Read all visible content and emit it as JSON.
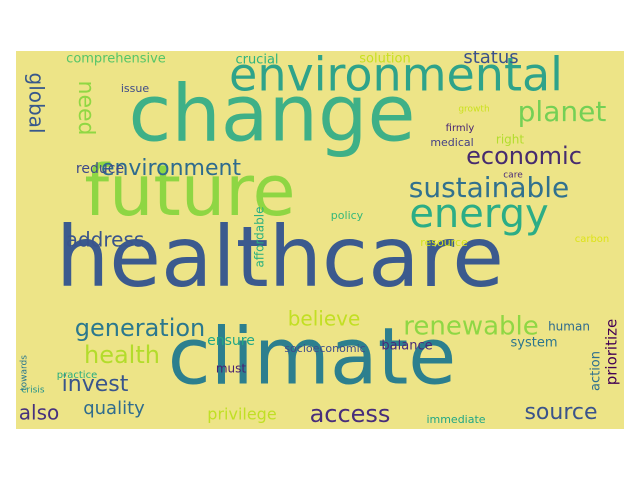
{
  "cloud": {
    "background": "#ede487",
    "words": [
      {
        "text": "healthcare",
        "color": "#3b5a8e"
      },
      {
        "text": "climate",
        "color": "#2c7f8e"
      },
      {
        "text": "change",
        "color": "#3eb087"
      },
      {
        "text": "future",
        "color": "#8ed643"
      },
      {
        "text": "environmental",
        "color": "#2ea38a"
      },
      {
        "text": "energy",
        "color": "#2cad86"
      },
      {
        "text": "sustainable",
        "color": "#31718e"
      },
      {
        "text": "economic",
        "color": "#462b6f"
      },
      {
        "text": "planet",
        "color": "#74d055"
      },
      {
        "text": "environment",
        "color": "#2e6b8e"
      },
      {
        "text": "generation",
        "color": "#2b788e"
      },
      {
        "text": "renewable",
        "color": "#8fd744"
      },
      {
        "text": "health",
        "color": "#b3dc2b"
      },
      {
        "text": "address",
        "color": "#3a548c"
      },
      {
        "text": "access",
        "color": "#472d7b"
      },
      {
        "text": "source",
        "color": "#3a538b"
      },
      {
        "text": "invest",
        "color": "#39558c"
      },
      {
        "text": "also",
        "color": "#46317e"
      },
      {
        "text": "quality",
        "color": "#2f6c8e"
      },
      {
        "text": "believe",
        "color": "#c2df23"
      },
      {
        "text": "need",
        "color": "#90d743"
      },
      {
        "text": "global",
        "color": "#38588c"
      },
      {
        "text": "status",
        "color": "#3b518b"
      },
      {
        "text": "reduce",
        "color": "#3e4989"
      },
      {
        "text": "comprehensive",
        "color": "#55c568"
      },
      {
        "text": "crucial",
        "color": "#2fb37f"
      },
      {
        "text": "solution",
        "color": "#c8e020"
      },
      {
        "text": "issue",
        "color": "#3e4a89"
      },
      {
        "text": "growth",
        "color": "#cbe11e"
      },
      {
        "text": "firmly",
        "color": "#482474"
      },
      {
        "text": "right",
        "color": "#b2dd2d"
      },
      {
        "text": "medical",
        "color": "#433e85"
      },
      {
        "text": "care",
        "color": "#482979"
      },
      {
        "text": "policy",
        "color": "#35b779"
      },
      {
        "text": "affordable",
        "color": "#2ab07f"
      },
      {
        "text": "resource",
        "color": "#d5e21a"
      },
      {
        "text": "carbon",
        "color": "#dde318"
      },
      {
        "text": "ensure",
        "color": "#22a785"
      },
      {
        "text": "socioeconomic",
        "color": "#3e4c8a"
      },
      {
        "text": "balance",
        "color": "#482979"
      },
      {
        "text": "human",
        "color": "#2f6b8e"
      },
      {
        "text": "system",
        "color": "#2b758e"
      },
      {
        "text": "prioritize",
        "color": "#440154"
      },
      {
        "text": "action",
        "color": "#2e6f8e"
      },
      {
        "text": "must",
        "color": "#482172"
      },
      {
        "text": "privilege",
        "color": "#c0df25"
      },
      {
        "text": "immediate",
        "color": "#21a685"
      },
      {
        "text": "practice",
        "color": "#27ad81"
      },
      {
        "text": "crisis",
        "color": "#21918c"
      },
      {
        "text": "towards",
        "color": "#2a788e"
      }
    ]
  }
}
